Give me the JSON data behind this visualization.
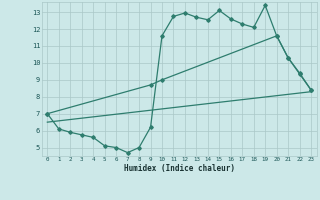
{
  "line1_x": [
    0,
    1,
    2,
    3,
    4,
    5,
    6,
    7,
    8,
    9,
    10,
    11,
    12,
    13,
    14,
    15,
    16,
    17,
    18,
    19,
    20,
    21,
    22,
    23
  ],
  "line1_y": [
    7.0,
    6.1,
    5.9,
    5.75,
    5.6,
    5.1,
    5.0,
    4.7,
    5.0,
    6.2,
    11.6,
    12.75,
    12.95,
    12.7,
    12.55,
    13.1,
    12.6,
    12.3,
    12.1,
    13.4,
    11.6,
    10.3,
    9.35,
    8.4
  ],
  "line2_x": [
    0,
    9,
    10,
    20,
    21,
    22,
    23
  ],
  "line2_y": [
    7.0,
    8.7,
    9.0,
    11.6,
    10.3,
    9.4,
    8.4
  ],
  "line3_x": [
    0,
    23
  ],
  "line3_y": [
    6.5,
    8.3
  ],
  "color": "#2e7d6e",
  "bg_color": "#cce8e8",
  "grid_color": "#aac8c8",
  "xlabel": "Humidex (Indice chaleur)",
  "xlim": [
    -0.5,
    23.5
  ],
  "ylim": [
    4.5,
    13.6
  ],
  "xticks": [
    0,
    1,
    2,
    3,
    4,
    5,
    6,
    7,
    8,
    9,
    10,
    11,
    12,
    13,
    14,
    15,
    16,
    17,
    18,
    19,
    20,
    21,
    22,
    23
  ],
  "yticks": [
    5,
    6,
    7,
    8,
    9,
    10,
    11,
    12,
    13
  ],
  "marker": "D",
  "markersize": 1.8,
  "linewidth": 0.9
}
